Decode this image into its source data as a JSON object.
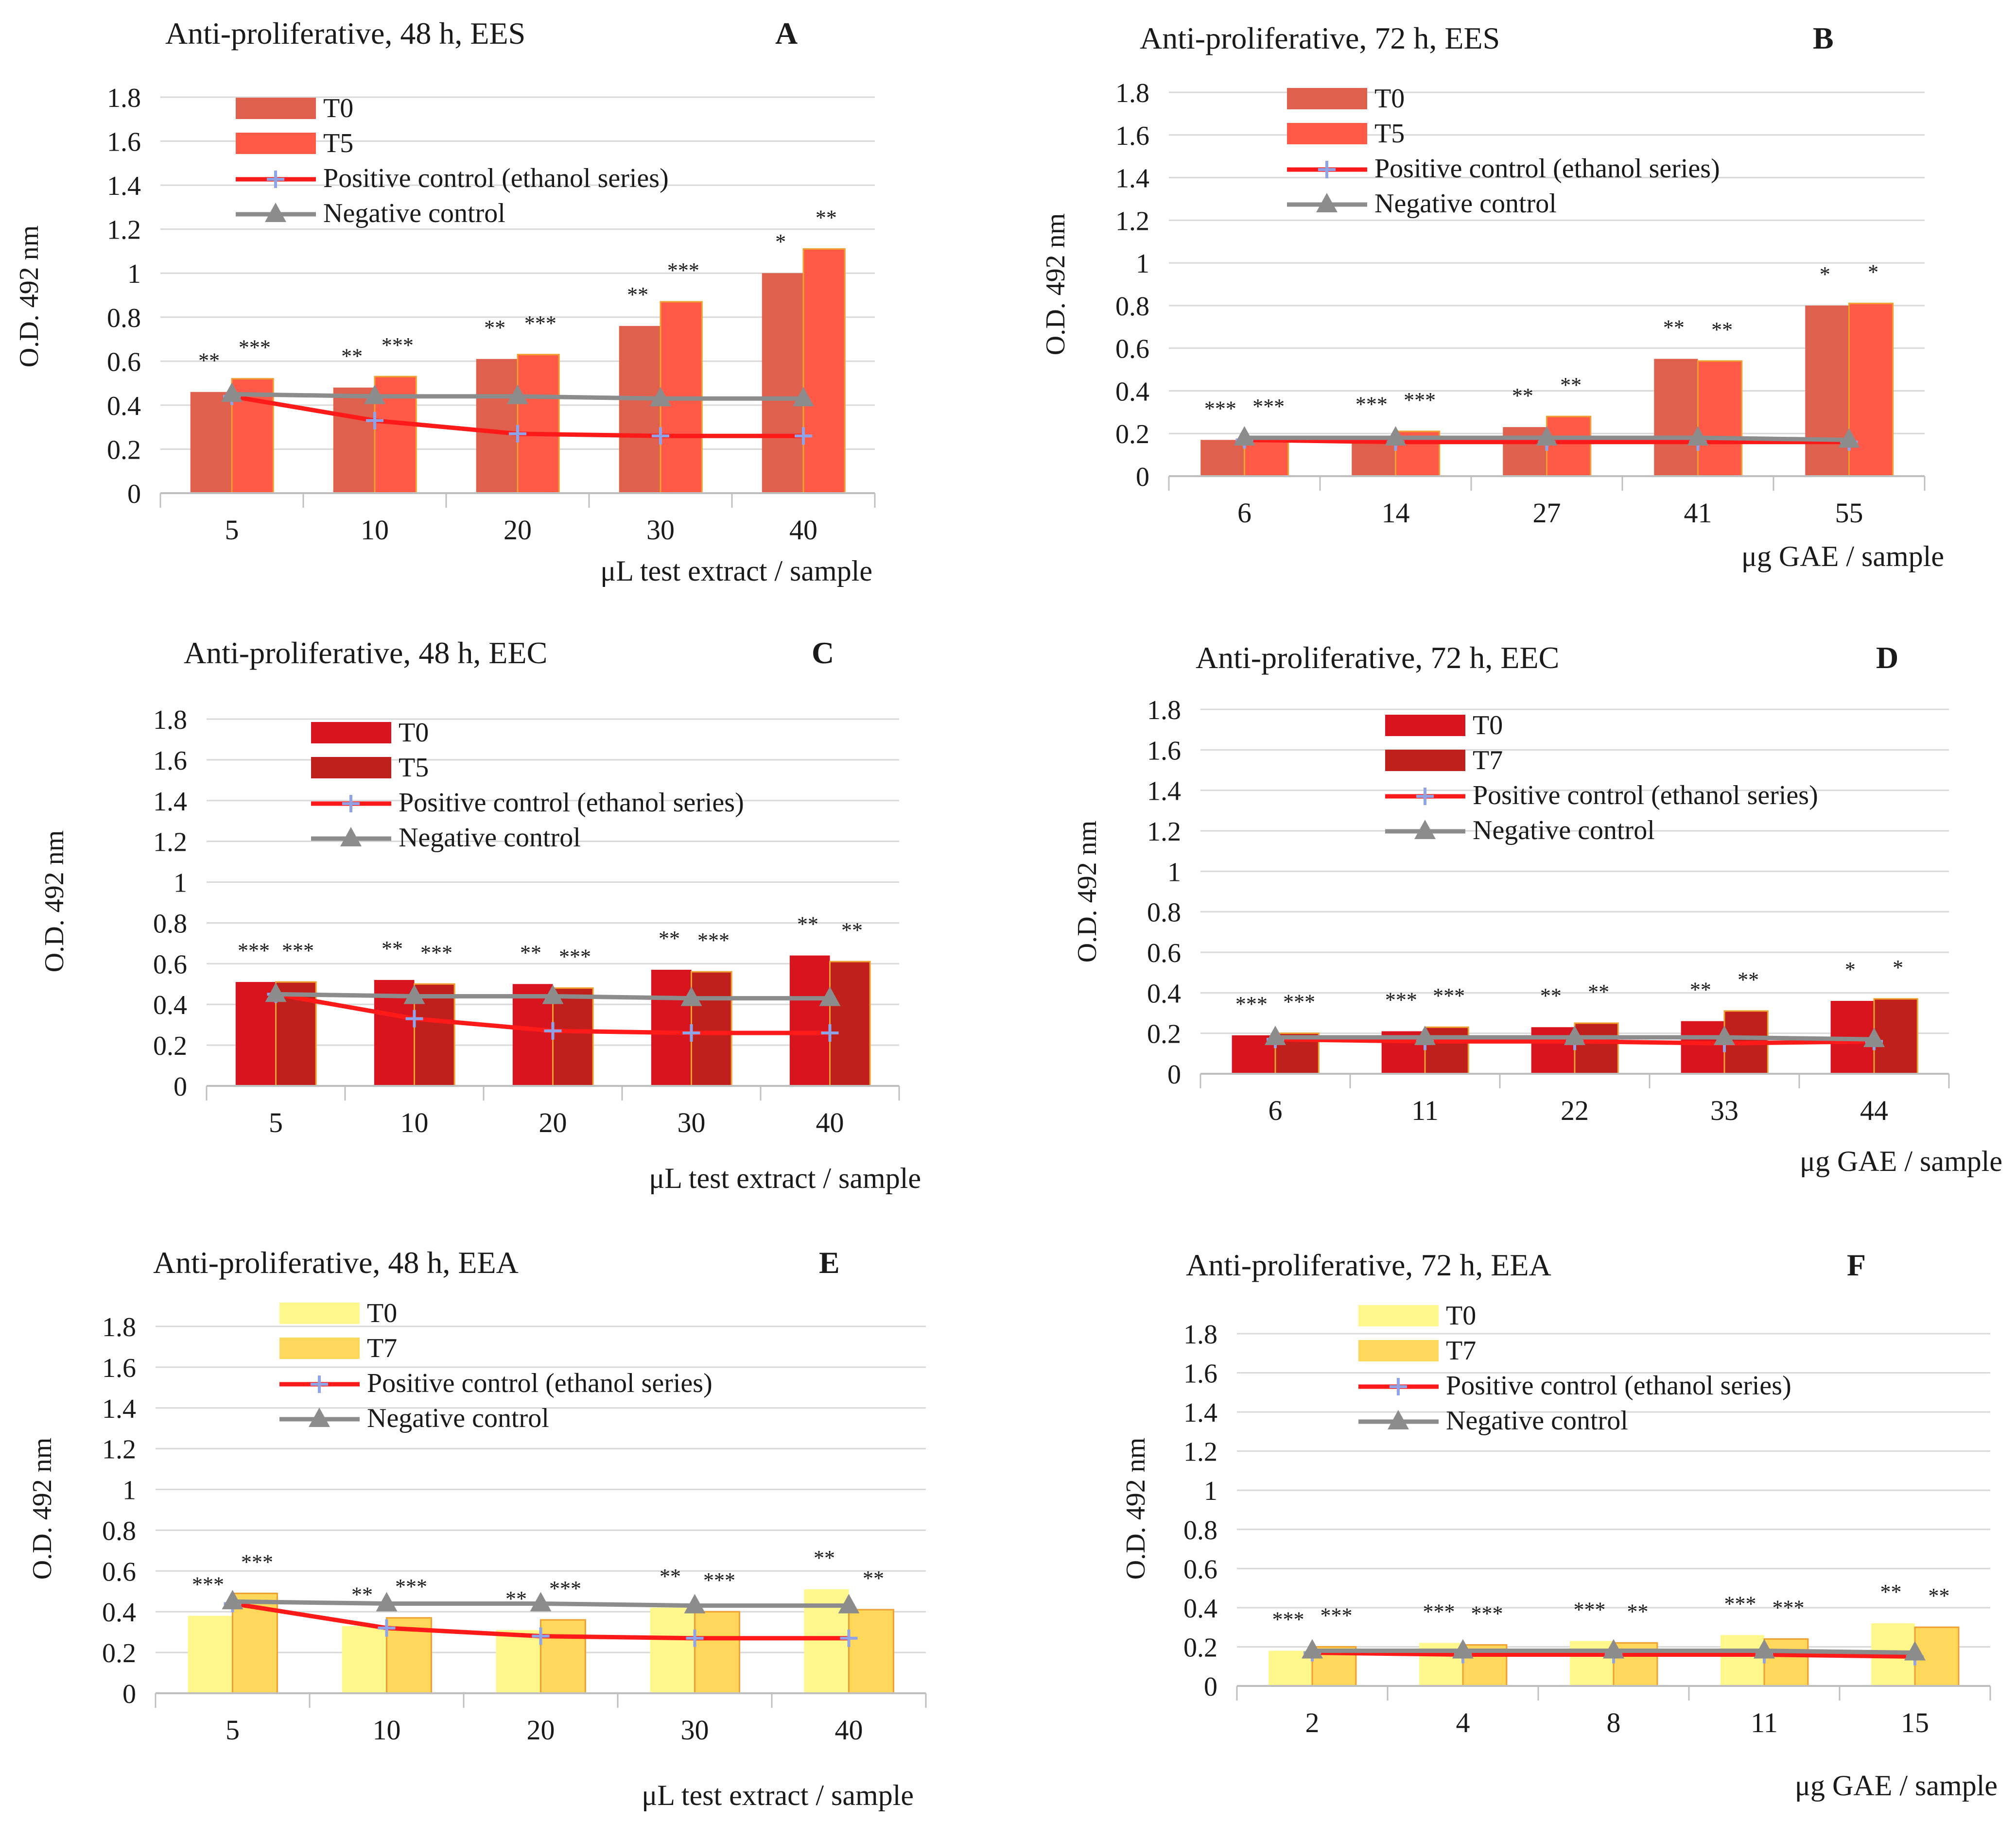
{
  "chart_data": [
    {
      "id": "A",
      "type": "bar",
      "title": "Anti-proliferative, 48 h, EES",
      "panel": "A",
      "ylabel": "O.D. 492 nm",
      "xlabel": "μL test extract / sample",
      "ylim": [
        0,
        1.8
      ],
      "yticks": [
        "0",
        "0.2",
        "0.4",
        "0.6",
        "0.8",
        "1",
        "1.2",
        "1.4",
        "1.6",
        "1.8"
      ],
      "categories": [
        "5",
        "10",
        "20",
        "30",
        "40"
      ],
      "series": [
        {
          "name": "T0",
          "color": "#e0604e",
          "values": [
            0.46,
            0.48,
            0.61,
            0.76,
            1.0
          ]
        },
        {
          "name": "T5",
          "color": "#ff5a47",
          "values": [
            0.52,
            0.53,
            0.63,
            0.87,
            1.11
          ]
        }
      ],
      "lines": [
        {
          "name": "Positive control (ethanol series)",
          "color": "#ff1a1a",
          "marker": "plus",
          "values": [
            0.44,
            0.33,
            0.27,
            0.26,
            0.26
          ]
        },
        {
          "name": "Negative control",
          "color": "#8c8c8c",
          "marker": "triangle",
          "values": [
            0.45,
            0.44,
            0.44,
            0.43,
            0.43
          ]
        }
      ],
      "sig": [
        [
          "**",
          "***"
        ],
        [
          "**",
          "***"
        ],
        [
          "**",
          "***"
        ],
        [
          "**",
          "***"
        ],
        [
          "*",
          "**"
        ]
      ]
    },
    {
      "id": "B",
      "type": "bar",
      "title": "Anti-proliferative, 72 h, EES",
      "panel": "B",
      "ylabel": "O.D. 492 nm",
      "xlabel": "μg GAE / sample",
      "ylim": [
        0,
        1.8
      ],
      "yticks": [
        "0",
        "0.2",
        "0.4",
        "0.6",
        "0.8",
        "1",
        "1.2",
        "1.4",
        "1.6",
        "1.8"
      ],
      "categories": [
        "6",
        "14",
        "27",
        "41",
        "55"
      ],
      "series": [
        {
          "name": "T0",
          "color": "#e0604e",
          "values": [
            0.17,
            0.19,
            0.23,
            0.55,
            0.8
          ]
        },
        {
          "name": "T5",
          "color": "#ff5a47",
          "values": [
            0.18,
            0.21,
            0.28,
            0.54,
            0.81
          ]
        }
      ],
      "lines": [
        {
          "name": "Positive control (ethanol series)",
          "color": "#ff1a1a",
          "marker": "plus",
          "values": [
            0.17,
            0.16,
            0.16,
            0.16,
            0.16
          ]
        },
        {
          "name": "Negative control",
          "color": "#8c8c8c",
          "marker": "triangle",
          "values": [
            0.18,
            0.18,
            0.18,
            0.18,
            0.17
          ]
        }
      ],
      "sig": [
        [
          "***",
          "***"
        ],
        [
          "***",
          "***"
        ],
        [
          "**",
          "**"
        ],
        [
          "**",
          "**"
        ],
        [
          "*",
          "*"
        ]
      ]
    },
    {
      "id": "C",
      "type": "bar",
      "title": "Anti-proliferative, 48 h, EEC",
      "panel": "C",
      "ylabel": "O.D. 492 nm",
      "xlabel": "μL test extract / sample",
      "ylim": [
        0,
        1.8
      ],
      "yticks": [
        "0",
        "0.2",
        "0.4",
        "0.6",
        "0.8",
        "1",
        "1.2",
        "1.4",
        "1.6",
        "1.8"
      ],
      "categories": [
        "5",
        "10",
        "20",
        "30",
        "40"
      ],
      "series": [
        {
          "name": "T0",
          "color": "#d8141e",
          "values": [
            0.51,
            0.52,
            0.5,
            0.57,
            0.64
          ]
        },
        {
          "name": "T5",
          "color": "#c0201c",
          "values": [
            0.51,
            0.5,
            0.48,
            0.56,
            0.61
          ]
        }
      ],
      "lines": [
        {
          "name": "Positive control (ethanol series)",
          "color": "#ff1a1a",
          "marker": "plus",
          "values": [
            0.45,
            0.33,
            0.27,
            0.26,
            0.26
          ]
        },
        {
          "name": "Negative control",
          "color": "#8c8c8c",
          "marker": "triangle",
          "values": [
            0.45,
            0.44,
            0.44,
            0.43,
            0.43
          ]
        }
      ],
      "sig": [
        [
          "***",
          "***"
        ],
        [
          "**",
          "***"
        ],
        [
          "**",
          "***"
        ],
        [
          "**",
          "***"
        ],
        [
          "**",
          "**"
        ]
      ]
    },
    {
      "id": "D",
      "type": "bar",
      "title": "Anti-proliferative, 72 h, EEC",
      "panel": "D",
      "ylabel": "O.D. 492 nm",
      "xlabel": "μg GAE / sample",
      "ylim": [
        0,
        1.8
      ],
      "yticks": [
        "0",
        "0.2",
        "0.4",
        "0.6",
        "0.8",
        "1",
        "1.2",
        "1.4",
        "1.6",
        "1.8"
      ],
      "categories": [
        "6",
        "11",
        "22",
        "33",
        "44"
      ],
      "series": [
        {
          "name": "T0",
          "color": "#d8141e",
          "values": [
            0.19,
            0.21,
            0.23,
            0.26,
            0.36
          ]
        },
        {
          "name": "T7",
          "color": "#c0201c",
          "values": [
            0.2,
            0.23,
            0.25,
            0.31,
            0.37
          ]
        }
      ],
      "lines": [
        {
          "name": "Positive control (ethanol series)",
          "color": "#ff1a1a",
          "marker": "plus",
          "values": [
            0.17,
            0.16,
            0.16,
            0.15,
            0.16
          ]
        },
        {
          "name": "Negative control",
          "color": "#8c8c8c",
          "marker": "triangle",
          "values": [
            0.18,
            0.18,
            0.18,
            0.18,
            0.17
          ]
        }
      ],
      "sig": [
        [
          "***",
          "***"
        ],
        [
          "***",
          "***"
        ],
        [
          "**",
          "**"
        ],
        [
          "**",
          "**"
        ],
        [
          "*",
          "*"
        ]
      ]
    },
    {
      "id": "E",
      "type": "bar",
      "title": "Anti-proliferative, 48 h, EEA",
      "panel": "E",
      "ylabel": "O.D. 492 nm",
      "xlabel": "μL test extract / sample",
      "ylim": [
        0,
        1.8
      ],
      "yticks": [
        "0",
        "0.2",
        "0.4",
        "0.6",
        "0.8",
        "1",
        "1.2",
        "1.4",
        "1.6",
        "1.8"
      ],
      "categories": [
        "5",
        "10",
        "20",
        "30",
        "40"
      ],
      "series": [
        {
          "name": "T0",
          "color": "#fff78c",
          "values": [
            0.38,
            0.33,
            0.31,
            0.42,
            0.51
          ]
        },
        {
          "name": "T7",
          "color": "#ffd75a",
          "values": [
            0.49,
            0.37,
            0.36,
            0.4,
            0.41
          ]
        }
      ],
      "lines": [
        {
          "name": "Positive control (ethanol series)",
          "color": "#ff1a1a",
          "marker": "plus",
          "values": [
            0.44,
            0.32,
            0.28,
            0.27,
            0.27
          ]
        },
        {
          "name": "Negative control",
          "color": "#8c8c8c",
          "marker": "triangle",
          "values": [
            0.45,
            0.44,
            0.44,
            0.43,
            0.43
          ]
        }
      ],
      "sig": [
        [
          "***",
          "***"
        ],
        [
          "**",
          "***"
        ],
        [
          "**",
          "***"
        ],
        [
          "**",
          "***"
        ],
        [
          "**",
          "**"
        ]
      ]
    },
    {
      "id": "F",
      "type": "bar",
      "title": "Anti-proliferative, 72 h, EEA",
      "panel": "F",
      "ylabel": "O.D. 492 nm",
      "xlabel": "μg GAE / sample",
      "ylim": [
        0,
        1.8
      ],
      "yticks": [
        "0",
        "0.2",
        "0.4",
        "0.6",
        "0.8",
        "1",
        "1.2",
        "1.4",
        "1.6",
        "1.8"
      ],
      "categories": [
        "2",
        "4",
        "8",
        "11",
        "15"
      ],
      "series": [
        {
          "name": "T0",
          "color": "#fff78c",
          "values": [
            0.18,
            0.22,
            0.23,
            0.26,
            0.32
          ]
        },
        {
          "name": "T7",
          "color": "#ffd75a",
          "values": [
            0.2,
            0.21,
            0.22,
            0.24,
            0.3
          ]
        }
      ],
      "lines": [
        {
          "name": "Positive control (ethanol series)",
          "color": "#ff1a1a",
          "marker": "plus",
          "values": [
            0.17,
            0.16,
            0.16,
            0.16,
            0.15
          ]
        },
        {
          "name": "Negative control",
          "color": "#8c8c8c",
          "marker": "triangle",
          "values": [
            0.18,
            0.18,
            0.18,
            0.18,
            0.17
          ]
        }
      ],
      "sig": [
        [
          "***",
          "***"
        ],
        [
          "***",
          "***"
        ],
        [
          "***",
          "**"
        ],
        [
          "***",
          "***"
        ],
        [
          "**",
          "**"
        ]
      ]
    }
  ]
}
